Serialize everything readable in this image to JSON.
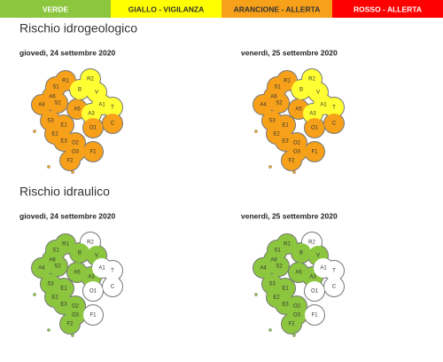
{
  "legend": [
    {
      "label": "VERDE",
      "color": "#8cc63f",
      "text_color": "#ffffff"
    },
    {
      "label": "GIALLO - VIGILANZA",
      "color": "#ffff00",
      "text_color": "#333333"
    },
    {
      "label": "ARANCIONE - ALLERTA",
      "color": "#f7a11a",
      "text_color": "#333333"
    },
    {
      "label": "ROSSO - ALLERTA",
      "color": "#ff0000",
      "text_color": "#ffffff"
    }
  ],
  "zones": [
    "R1",
    "R2",
    "S1",
    "B",
    "V",
    "A6",
    "A4",
    "S2",
    "A5",
    "A3",
    "A1",
    "T",
    "S3",
    "E1",
    "E2",
    "O1",
    "C",
    "E3",
    "O2",
    "O3",
    "F1",
    "F2"
  ],
  "sections": [
    {
      "title": "Rischio idrogeologico",
      "maps": [
        {
          "date": "giovedì, 24 settembre 2020",
          "zone_colors": [
            "#f7a11a",
            "#ffff33",
            "#f7a11a",
            "#ffff33",
            "#ffff33",
            "#f7a11a",
            "#f7a11a",
            "#f7a11a",
            "#f7a11a",
            "#ffff33",
            "#ffff33",
            "#ffff33",
            "#f7a11a",
            "#f7a11a",
            "#f7a11a",
            "#f7a11a",
            "#f7a11a",
            "#f7a11a",
            "#f7a11a",
            "#f7a11a",
            "#f7a11a",
            "#f7a11a"
          ]
        },
        {
          "date": "venerdì, 25 settembre 2020",
          "zone_colors": [
            "#f7a11a",
            "#ffff33",
            "#f7a11a",
            "#ffff33",
            "#ffff33",
            "#f7a11a",
            "#f7a11a",
            "#f7a11a",
            "#f7a11a",
            "#ffff33",
            "#ffff33",
            "#ffff33",
            "#f7a11a",
            "#f7a11a",
            "#f7a11a",
            "#f7a11a",
            "#f7a11a",
            "#f7a11a",
            "#f7a11a",
            "#f7a11a",
            "#f7a11a",
            "#f7a11a"
          ]
        }
      ]
    },
    {
      "title": "Rischio idraulico",
      "maps": [
        {
          "date": "giovedì, 24 settembre 2020",
          "zone_colors": [
            "#8cc63f",
            "#ffffff",
            "#8cc63f",
            "#8cc63f",
            "#8cc63f",
            "#8cc63f",
            "#8cc63f",
            "#8cc63f",
            "#8cc63f",
            "#8cc63f",
            "#ffffff",
            "#ffffff",
            "#8cc63f",
            "#8cc63f",
            "#8cc63f",
            "#ffffff",
            "#ffffff",
            "#8cc63f",
            "#8cc63f",
            "#8cc63f",
            "#ffffff",
            "#8cc63f"
          ]
        },
        {
          "date": "venerdì, 25 settembre 2020",
          "zone_colors": [
            "#8cc63f",
            "#ffffff",
            "#8cc63f",
            "#8cc63f",
            "#8cc63f",
            "#8cc63f",
            "#8cc63f",
            "#8cc63f",
            "#8cc63f",
            "#8cc63f",
            "#ffffff",
            "#ffffff",
            "#8cc63f",
            "#8cc63f",
            "#8cc63f",
            "#ffffff",
            "#ffffff",
            "#8cc63f",
            "#8cc63f",
            "#8cc63f",
            "#ffffff",
            "#8cc63f"
          ]
        }
      ]
    }
  ]
}
